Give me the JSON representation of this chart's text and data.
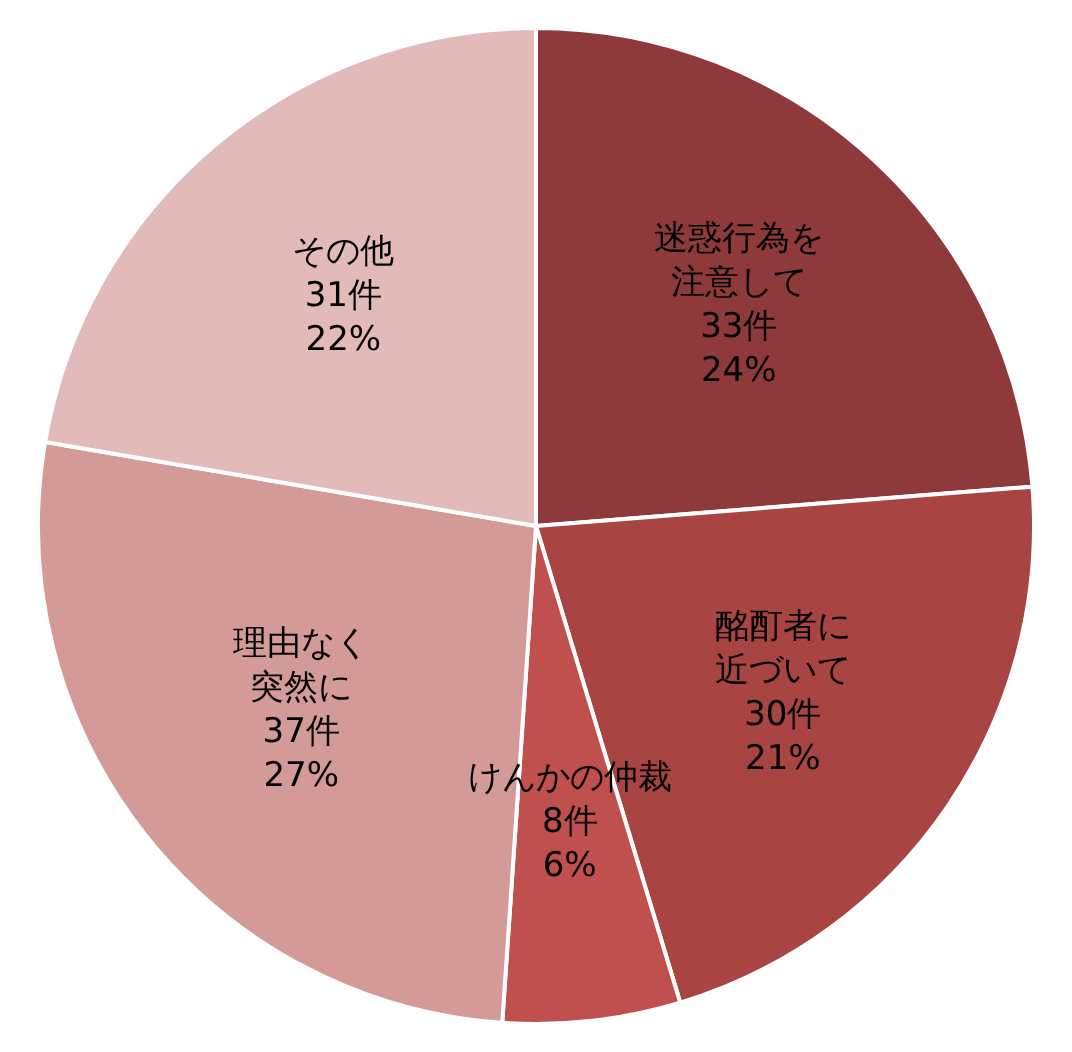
{
  "chart_data": {
    "type": "pie",
    "categories": [
      "迷惑行為を注意して",
      "酩酊者に近づいて",
      "けんかの仲裁",
      "理由なく突然に",
      "その他"
    ],
    "values": [
      33,
      30,
      8,
      37,
      31
    ],
    "value_labels": [
      "33件\n24%",
      "30件\n21%",
      "8件\n6%",
      "37件\n27%",
      "31件\n22%"
    ],
    "colors": [
      "#8e3a3a",
      "#a84442",
      "#c0504d",
      "#d49a98",
      "#e3baba"
    ],
    "legend": false
  }
}
